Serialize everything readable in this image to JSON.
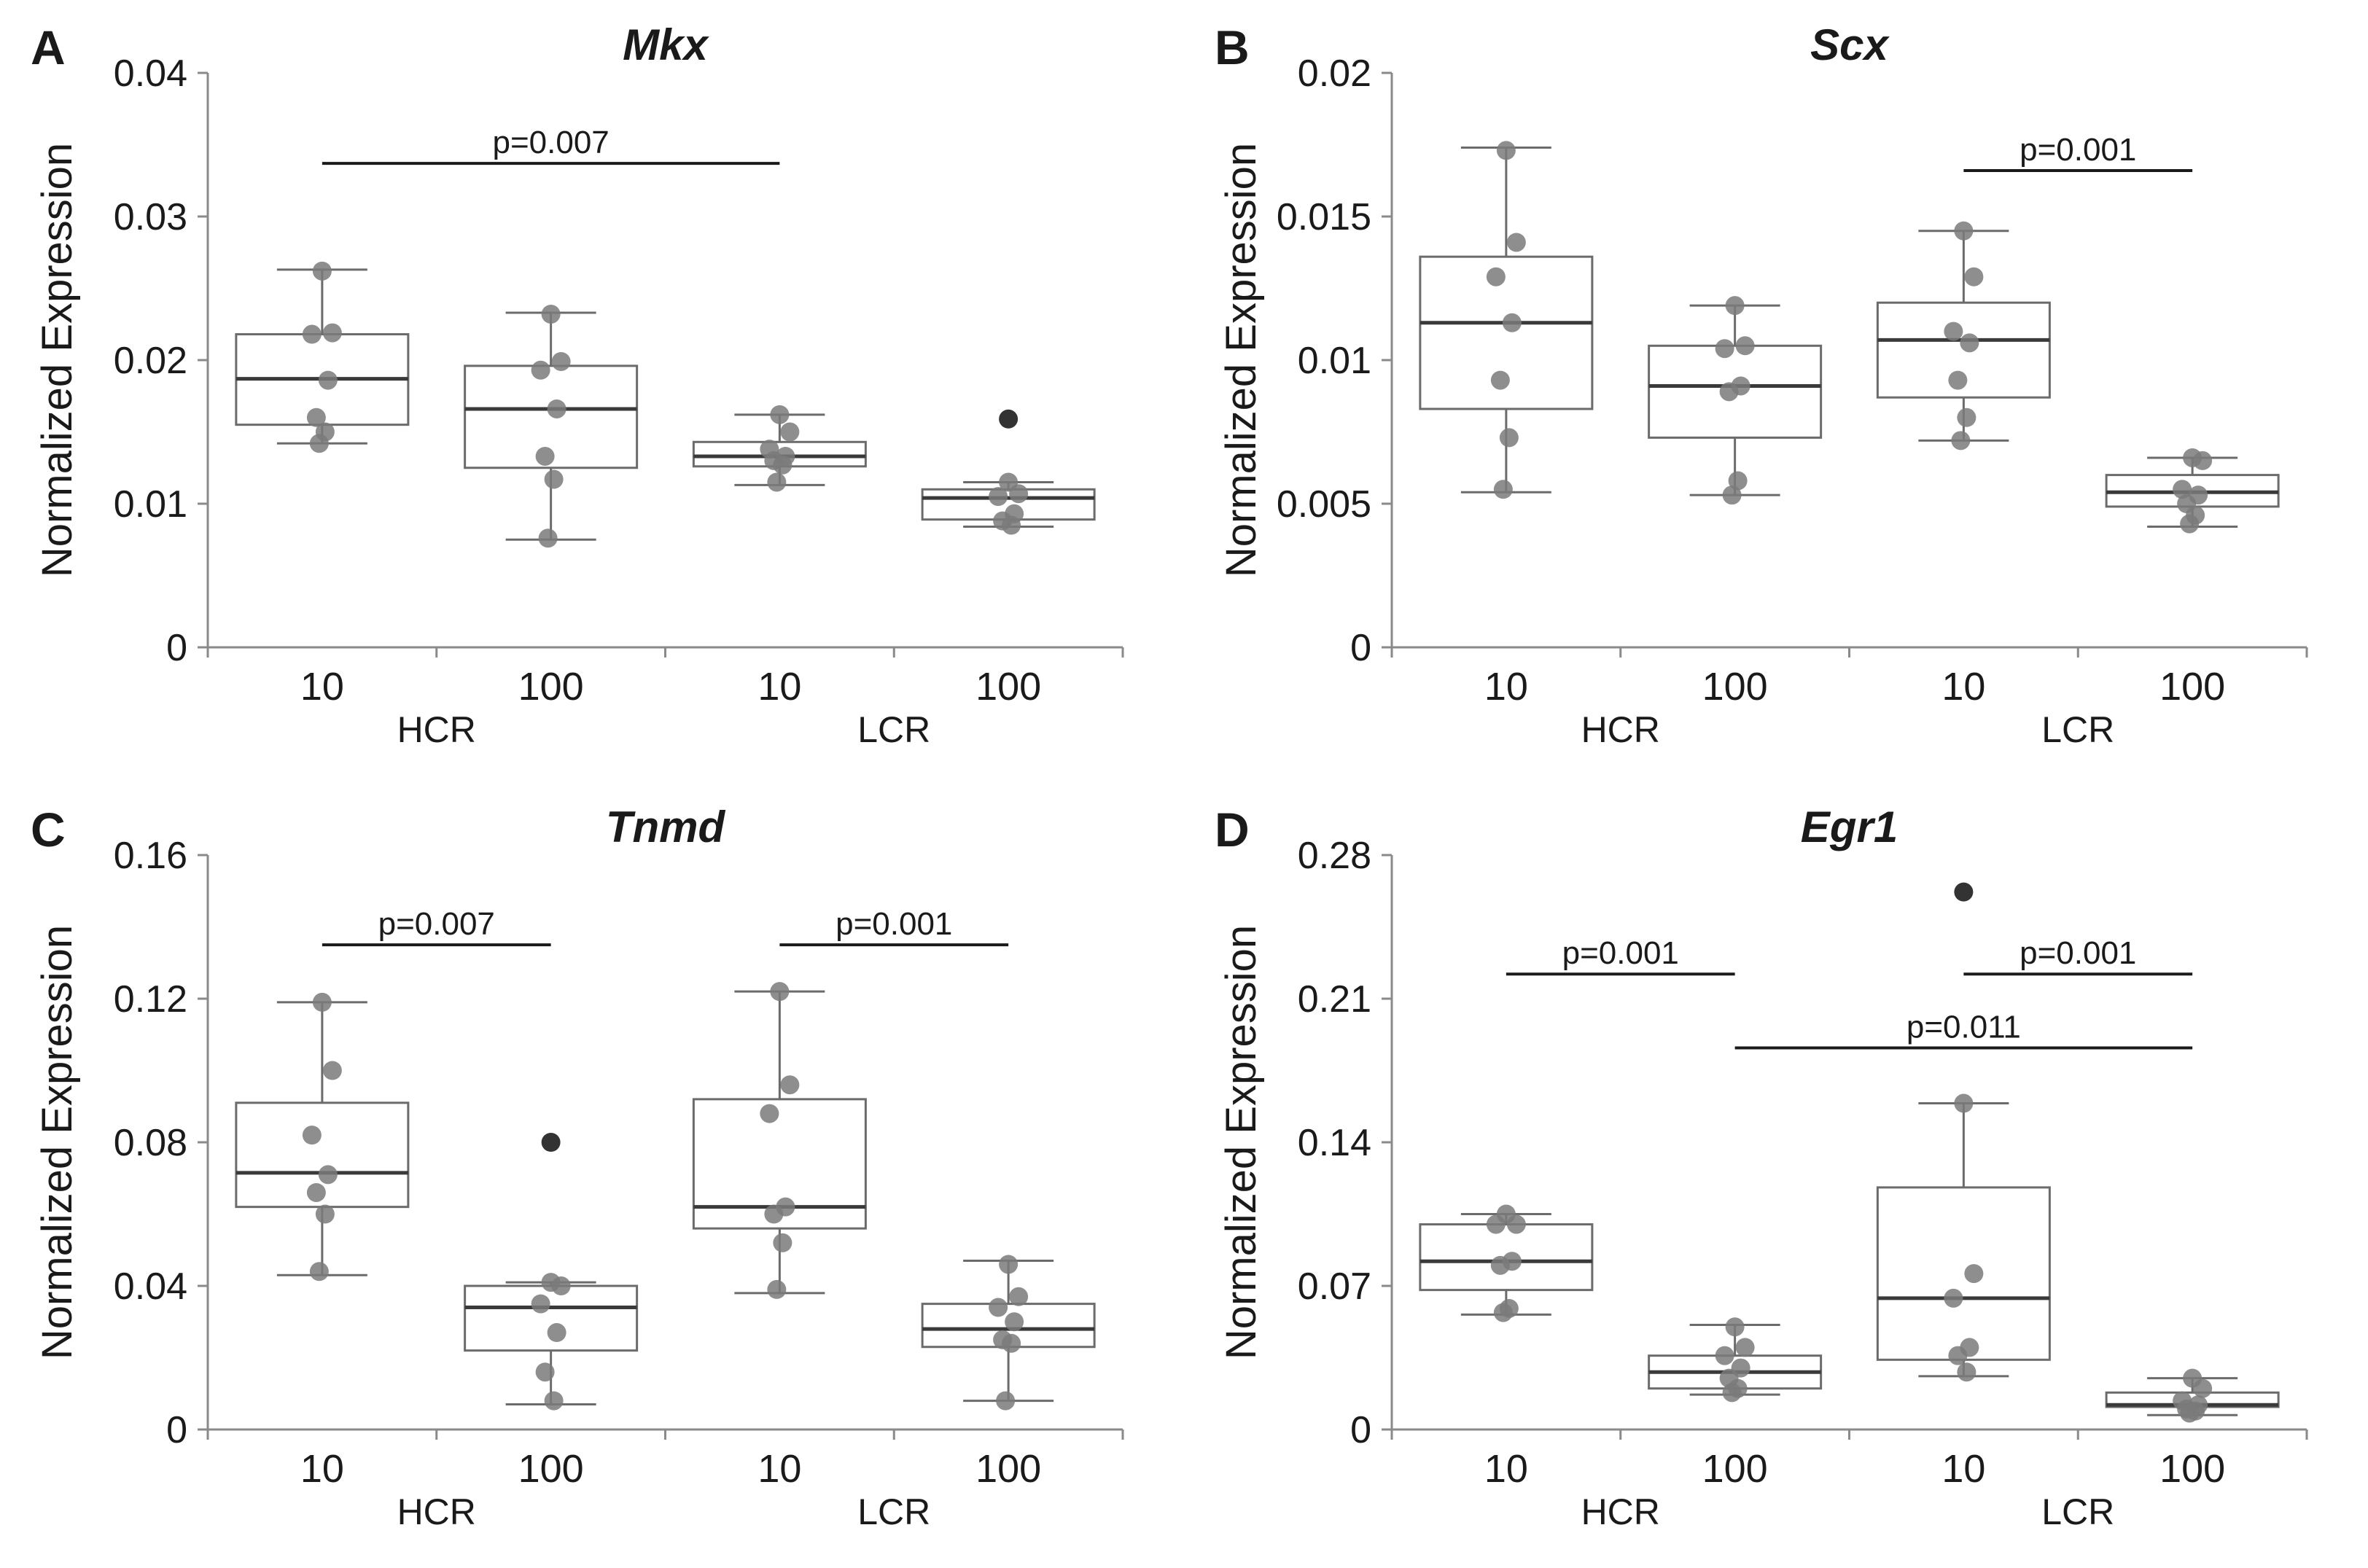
{
  "chart_data": [
    {
      "panel": "A",
      "title": "Mkx",
      "type": "box",
      "ylabel": "Normalized Expression",
      "ylim": [
        0,
        0.04
      ],
      "yticks": [
        "0",
        "0.01",
        "0.02",
        "0.03",
        "0.04"
      ],
      "ytick_values": [
        0,
        0.01,
        0.02,
        0.03,
        0.04
      ],
      "categories": [
        "10",
        "100",
        "10",
        "100"
      ],
      "groups": [
        {
          "label": "HCR"
        },
        {
          "label": "LCR"
        }
      ],
      "boxes": [
        {
          "q1": 0.0155,
          "median": 0.0187,
          "q3": 0.0218,
          "whisker_low": 0.0142,
          "whisker_high": 0.0263,
          "points": [
            0.0262,
            0.0219,
            0.0218,
            0.0186,
            0.016,
            0.015,
            0.0142
          ],
          "outliers": []
        },
        {
          "q1": 0.0125,
          "median": 0.0166,
          "q3": 0.0196,
          "whisker_low": 0.0075,
          "whisker_high": 0.0233,
          "points": [
            0.0232,
            0.0199,
            0.0193,
            0.0166,
            0.0133,
            0.0117,
            0.0076
          ],
          "outliers": []
        },
        {
          "q1": 0.0126,
          "median": 0.0133,
          "q3": 0.0143,
          "whisker_low": 0.0113,
          "whisker_high": 0.0162,
          "points": [
            0.0162,
            0.015,
            0.0138,
            0.0133,
            0.013,
            0.0127,
            0.0115
          ],
          "outliers": []
        },
        {
          "q1": 0.0089,
          "median": 0.0104,
          "q3": 0.011,
          "whisker_low": 0.0084,
          "whisker_high": 0.0115,
          "points": [
            0.0115,
            0.0107,
            0.0105,
            0.0093,
            0.0088,
            0.0085
          ],
          "outliers": [
            0.0159
          ]
        }
      ],
      "annotations": [
        {
          "text": "p=0.007",
          "from": 0,
          "to": 2,
          "y": 0.0337
        }
      ]
    },
    {
      "panel": "B",
      "title": "Scx",
      "type": "box",
      "ylabel": "Normalized Expression",
      "ylim": [
        0,
        0.02
      ],
      "yticks": [
        "0",
        "0.005",
        "0.01",
        "0.015",
        "0.02"
      ],
      "ytick_values": [
        0,
        0.005,
        0.01,
        0.015,
        0.02
      ],
      "categories": [
        "10",
        "100",
        "10",
        "100"
      ],
      "groups": [
        {
          "label": "HCR"
        },
        {
          "label": "LCR"
        }
      ],
      "boxes": [
        {
          "q1": 0.0083,
          "median": 0.0113,
          "q3": 0.0136,
          "whisker_low": 0.0054,
          "whisker_high": 0.0174,
          "points": [
            0.0173,
            0.0141,
            0.0129,
            0.0113,
            0.0093,
            0.0073,
            0.0055
          ],
          "outliers": []
        },
        {
          "q1": 0.0073,
          "median": 0.0091,
          "q3": 0.0105,
          "whisker_low": 0.0053,
          "whisker_high": 0.0119,
          "points": [
            0.0119,
            0.0105,
            0.0104,
            0.0091,
            0.0089,
            0.0058,
            0.0053
          ],
          "outliers": []
        },
        {
          "q1": 0.0087,
          "median": 0.0107,
          "q3": 0.012,
          "whisker_low": 0.0072,
          "whisker_high": 0.0145,
          "points": [
            0.0145,
            0.0129,
            0.011,
            0.0106,
            0.0093,
            0.008,
            0.0072
          ],
          "outliers": []
        },
        {
          "q1": 0.0049,
          "median": 0.0054,
          "q3": 0.006,
          "whisker_low": 0.0042,
          "whisker_high": 0.0066,
          "points": [
            0.0066,
            0.0065,
            0.0055,
            0.0053,
            0.005,
            0.0046,
            0.0043
          ],
          "outliers": []
        }
      ],
      "annotations": [
        {
          "text": "p=0.001",
          "from": 2,
          "to": 3,
          "y": 0.0166
        }
      ]
    },
    {
      "panel": "C",
      "title": "Tnmd",
      "type": "box",
      "ylabel": "Normalized Expression",
      "ylim": [
        0,
        0.16
      ],
      "yticks": [
        "0",
        "0.04",
        "0.08",
        "0.12",
        "0.16"
      ],
      "ytick_values": [
        0,
        0.04,
        0.08,
        0.12,
        0.16
      ],
      "categories": [
        "10",
        "100",
        "10",
        "100"
      ],
      "groups": [
        {
          "label": "HCR"
        },
        {
          "label": "LCR"
        }
      ],
      "boxes": [
        {
          "q1": 0.062,
          "median": 0.0715,
          "q3": 0.091,
          "whisker_low": 0.043,
          "whisker_high": 0.119,
          "points": [
            0.119,
            0.1,
            0.082,
            0.071,
            0.066,
            0.06,
            0.044
          ],
          "outliers": []
        },
        {
          "q1": 0.022,
          "median": 0.034,
          "q3": 0.04,
          "whisker_low": 0.007,
          "whisker_high": 0.041,
          "points": [
            0.041,
            0.04,
            0.035,
            0.027,
            0.016,
            0.008
          ],
          "outliers": [
            0.08
          ]
        },
        {
          "q1": 0.056,
          "median": 0.062,
          "q3": 0.092,
          "whisker_low": 0.038,
          "whisker_high": 0.122,
          "points": [
            0.122,
            0.096,
            0.088,
            0.062,
            0.06,
            0.052,
            0.039
          ],
          "outliers": []
        },
        {
          "q1": 0.023,
          "median": 0.028,
          "q3": 0.035,
          "whisker_low": 0.008,
          "whisker_high": 0.047,
          "points": [
            0.046,
            0.037,
            0.034,
            0.03,
            0.025,
            0.024,
            0.008
          ],
          "outliers": []
        }
      ],
      "annotations": [
        {
          "text": "p=0.007",
          "from": 0,
          "to": 1,
          "y": 0.135
        },
        {
          "text": "p=0.001",
          "from": 2,
          "to": 3,
          "y": 0.135
        }
      ]
    },
    {
      "panel": "D",
      "title": "Egr1",
      "type": "box",
      "ylabel": "Normalized Expression",
      "ylim": [
        0,
        0.28
      ],
      "yticks": [
        "0",
        "0.07",
        "0.14",
        "0.21",
        "0.28"
      ],
      "ytick_values": [
        0,
        0.07,
        0.14,
        0.21,
        0.28
      ],
      "categories": [
        "10",
        "100",
        "10",
        "100"
      ],
      "groups": [
        {
          "label": "HCR"
        },
        {
          "label": "LCR"
        }
      ],
      "boxes": [
        {
          "q1": 0.068,
          "median": 0.082,
          "q3": 0.1,
          "whisker_low": 0.056,
          "whisker_high": 0.105,
          "points": [
            0.105,
            0.1,
            0.1,
            0.082,
            0.08,
            0.059,
            0.057
          ],
          "outliers": []
        },
        {
          "q1": 0.02,
          "median": 0.028,
          "q3": 0.036,
          "whisker_low": 0.017,
          "whisker_high": 0.051,
          "points": [
            0.05,
            0.04,
            0.036,
            0.03,
            0.025,
            0.02,
            0.018
          ],
          "outliers": []
        },
        {
          "q1": 0.034,
          "median": 0.064,
          "q3": 0.118,
          "whisker_low": 0.026,
          "whisker_high": 0.159,
          "points": [
            0.159,
            0.076,
            0.064,
            0.04,
            0.036,
            0.028
          ],
          "outliers": [
            0.262
          ]
        },
        {
          "q1": 0.011,
          "median": 0.012,
          "q3": 0.018,
          "whisker_low": 0.007,
          "whisker_high": 0.025,
          "points": [
            0.025,
            0.02,
            0.014,
            0.012,
            0.01,
            0.009,
            0.008
          ],
          "outliers": []
        }
      ],
      "annotations": [
        {
          "text": "p=0.001",
          "from": 0,
          "to": 1,
          "y": 0.222
        },
        {
          "text": "p=0.001",
          "from": 2,
          "to": 3,
          "y": 0.222
        },
        {
          "text": "p=0.011",
          "from": 1,
          "to": 3,
          "y": 0.186
        }
      ]
    }
  ]
}
